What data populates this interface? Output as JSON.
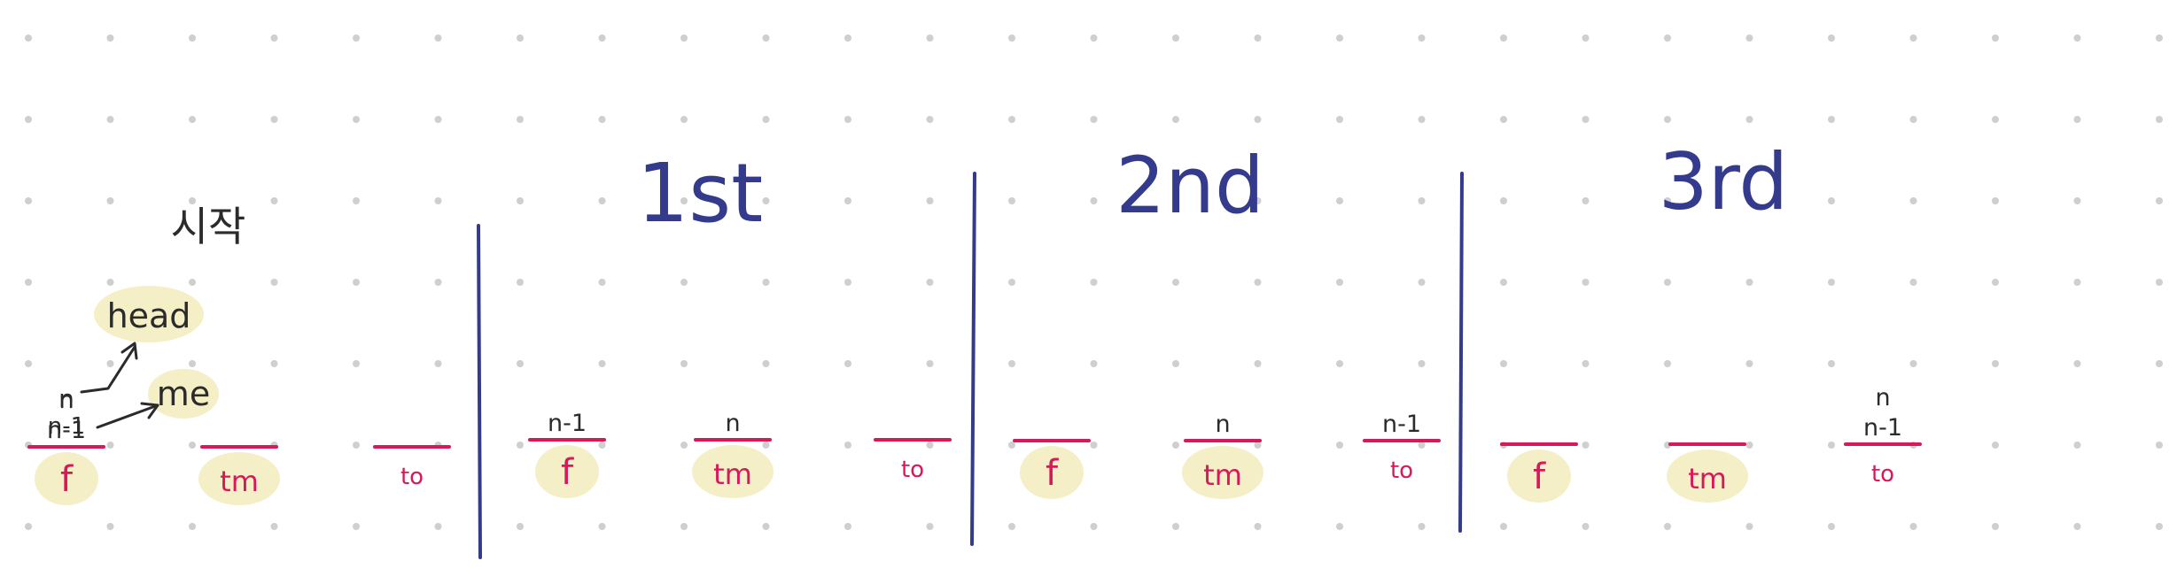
{
  "start_label": "시작",
  "annotations": {
    "head": "head",
    "me": "me",
    "n": "n",
    "n_minus_1": "n-1"
  },
  "steps": [
    {
      "title": "",
      "pegs": [
        {
          "label": "f",
          "marks": [
            "n",
            "n-1"
          ],
          "highlight": true
        },
        {
          "label": "tm",
          "marks": [],
          "highlight": true
        },
        {
          "label": "to",
          "marks": [],
          "highlight": false
        }
      ]
    },
    {
      "title": "1st",
      "pegs": [
        {
          "label": "f",
          "marks": [
            "n-1"
          ],
          "highlight": true
        },
        {
          "label": "tm",
          "marks": [
            "n"
          ],
          "highlight": true
        },
        {
          "label": "to",
          "marks": [],
          "highlight": false
        }
      ]
    },
    {
      "title": "2nd",
      "pegs": [
        {
          "label": "f",
          "marks": [],
          "highlight": true
        },
        {
          "label": "tm",
          "marks": [
            "n"
          ],
          "highlight": true
        },
        {
          "label": "to",
          "marks": [
            "n-1"
          ],
          "highlight": false
        }
      ]
    },
    {
      "title": "3rd",
      "pegs": [
        {
          "label": "f",
          "marks": [],
          "highlight": true
        },
        {
          "label": "tm",
          "marks": [],
          "highlight": true
        },
        {
          "label": "to",
          "marks": [
            "n",
            "n-1"
          ],
          "highlight": false
        }
      ]
    }
  ],
  "colors": {
    "ink_dark": "#2b2b2b",
    "ink_navy": "#343a8c",
    "ink_pink": "#d8185a",
    "highlight": "#f4efc6",
    "dots": "#cfcfcf"
  }
}
